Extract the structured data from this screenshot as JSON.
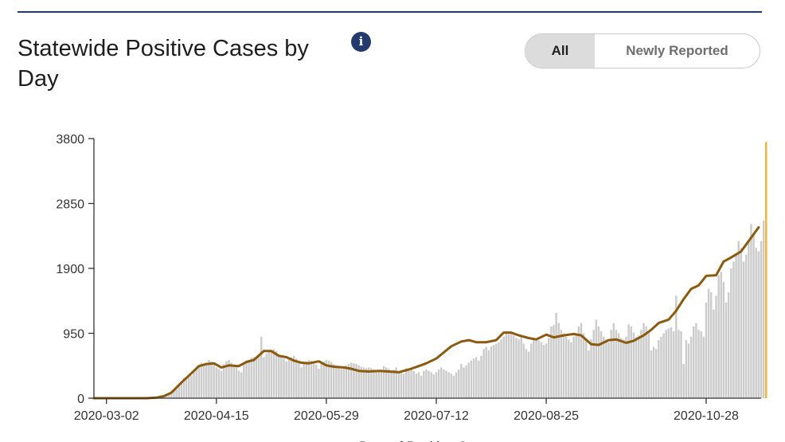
{
  "header": {
    "title": "Statewide Positive Cases by Day",
    "info_icon": "info-icon",
    "toggle": {
      "options": [
        "All",
        "Newly Reported"
      ],
      "selected": "All"
    }
  },
  "colors": {
    "bar": "#cccccc",
    "line": "#8b5a0f",
    "highlight": "#f2b33d",
    "header_rule": "#233a6e"
  },
  "chart_data": {
    "type": "bar",
    "overlay": "line (7-day average)",
    "title": "Statewide Positive Cases by Day",
    "xlabel": "Date of Positive Cases",
    "ylabel": "",
    "ylim": [
      0,
      3800
    ],
    "y_ticks": [
      0,
      950,
      1900,
      2850,
      3800
    ],
    "y_tick_labels": [
      "0",
      "950",
      "1900",
      "2850",
      "3800"
    ],
    "x_tick_labels": [
      "2020-03-02",
      "2020-04-15",
      "2020-05-29",
      "2020-07-12",
      "2020-08-25",
      "2020-10-28"
    ],
    "x_start": "2020-02-26",
    "x_end": "2020-11-19",
    "legend": "none",
    "grid": false,
    "highlight_last_bar": true,
    "series": [
      {
        "type": "bar",
        "step_days": 1,
        "values": [
          0,
          0,
          0,
          0,
          0,
          0,
          0,
          0,
          0,
          0,
          0,
          0,
          0,
          0,
          0,
          0,
          0,
          0,
          0,
          0,
          0,
          5,
          8,
          10,
          15,
          20,
          28,
          35,
          40,
          60,
          80,
          110,
          120,
          130,
          180,
          220,
          300,
          280,
          310,
          330,
          400,
          450,
          480,
          520,
          500,
          520,
          560,
          540,
          520,
          450,
          430,
          400,
          500,
          540,
          560,
          520,
          480,
          460,
          400,
          380,
          500,
          520,
          560,
          590,
          600,
          610,
          620,
          900,
          600,
          650,
          680,
          700,
          720,
          690,
          640,
          600,
          580,
          540,
          560,
          600,
          620,
          580,
          540,
          450,
          500,
          540,
          560,
          550,
          520,
          490,
          430,
          520,
          540,
          560,
          550,
          530,
          500,
          480,
          450,
          430,
          460,
          480,
          500,
          520,
          510,
          500,
          480,
          460,
          450,
          440,
          450,
          440,
          420,
          400,
          380,
          420,
          470,
          450,
          430,
          400,
          420,
          450,
          400,
          380,
          360,
          440,
          400,
          420,
          400,
          360,
          380,
          330,
          400,
          420,
          400,
          380,
          350,
          380,
          420,
          450,
          420,
          400,
          380,
          360,
          330,
          380,
          420,
          500,
          450,
          480,
          520,
          550,
          580,
          600,
          550,
          620,
          720,
          750,
          700,
          760,
          780,
          800,
          820,
          860,
          900,
          980,
          940,
          960,
          920,
          880,
          860,
          900,
          800,
          720,
          680,
          800,
          860,
          880,
          850,
          820,
          780,
          800,
          880,
          1050,
          1070,
          1250,
          1100,
          1000,
          950,
          900,
          860,
          820,
          900,
          950,
          1050,
          1100,
          950,
          870,
          700,
          860,
          1000,
          1150,
          1050,
          980,
          900,
          860,
          820,
          1000,
          1100,
          1000,
          950,
          880,
          860,
          900,
          1080,
          1050,
          960,
          900,
          920,
          1000,
          1100,
          1050,
          980,
          700,
          750,
          720,
          850,
          900,
          950,
          1000,
          1020,
          1040,
          980,
          1500,
          1000,
          980,
          500,
          850,
          800,
          900,
          1050,
          1100,
          1000,
          980,
          900,
          1400,
          1600,
          1550,
          1300,
          1500,
          1800,
          1850,
          1700,
          1400,
          1550,
          1900,
          2000,
          2100,
          2300,
          2200,
          2000,
          2100,
          2300,
          2550,
          2400,
          2200,
          2150,
          2300,
          2600,
          3750
        ]
      },
      {
        "type": "line",
        "name": "",
        "points": [
          [
            "2020-02-26",
            0
          ],
          [
            "2020-03-18",
            0
          ],
          [
            "2020-03-22",
            8
          ],
          [
            "2020-03-25",
            30
          ],
          [
            "2020-03-28",
            80
          ],
          [
            "2020-04-01",
            230
          ],
          [
            "2020-04-04",
            330
          ],
          [
            "2020-04-08",
            470
          ],
          [
            "2020-04-11",
            500
          ],
          [
            "2020-04-14",
            510
          ],
          [
            "2020-04-17",
            450
          ],
          [
            "2020-04-20",
            480
          ],
          [
            "2020-04-24",
            470
          ],
          [
            "2020-04-27",
            530
          ],
          [
            "2020-04-30",
            560
          ],
          [
            "2020-05-04",
            690
          ],
          [
            "2020-05-07",
            690
          ],
          [
            "2020-05-10",
            620
          ],
          [
            "2020-05-13",
            600
          ],
          [
            "2020-05-16",
            550
          ],
          [
            "2020-05-19",
            520
          ],
          [
            "2020-05-22",
            510
          ],
          [
            "2020-05-26",
            540
          ],
          [
            "2020-05-29",
            480
          ],
          [
            "2020-06-01",
            460
          ],
          [
            "2020-06-05",
            450
          ],
          [
            "2020-06-08",
            430
          ],
          [
            "2020-06-11",
            400
          ],
          [
            "2020-06-15",
            390
          ],
          [
            "2020-06-19",
            400
          ],
          [
            "2020-06-23",
            390
          ],
          [
            "2020-06-27",
            380
          ],
          [
            "2020-07-01",
            420
          ],
          [
            "2020-07-05",
            470
          ],
          [
            "2020-07-08",
            510
          ],
          [
            "2020-07-12",
            580
          ],
          [
            "2020-07-15",
            670
          ],
          [
            "2020-07-18",
            760
          ],
          [
            "2020-07-22",
            830
          ],
          [
            "2020-07-25",
            850
          ],
          [
            "2020-07-28",
            820
          ],
          [
            "2020-08-01",
            820
          ],
          [
            "2020-08-05",
            850
          ],
          [
            "2020-08-08",
            960
          ],
          [
            "2020-08-11",
            960
          ],
          [
            "2020-08-14",
            920
          ],
          [
            "2020-08-18",
            880
          ],
          [
            "2020-08-21",
            860
          ],
          [
            "2020-08-25",
            930
          ],
          [
            "2020-08-28",
            890
          ],
          [
            "2020-09-01",
            920
          ],
          [
            "2020-09-05",
            940
          ],
          [
            "2020-09-08",
            920
          ],
          [
            "2020-09-12",
            790
          ],
          [
            "2020-09-15",
            780
          ],
          [
            "2020-09-19",
            850
          ],
          [
            "2020-09-22",
            860
          ],
          [
            "2020-09-26",
            810
          ],
          [
            "2020-09-29",
            840
          ],
          [
            "2020-10-03",
            920
          ],
          [
            "2020-10-06",
            1000
          ],
          [
            "2020-10-09",
            1100
          ],
          [
            "2020-10-13",
            1150
          ],
          [
            "2020-10-16",
            1280
          ],
          [
            "2020-10-19",
            1450
          ],
          [
            "2020-10-22",
            1600
          ],
          [
            "2020-10-25",
            1650
          ],
          [
            "2020-10-28",
            1790
          ],
          [
            "2020-11-01",
            1800
          ],
          [
            "2020-11-04",
            2000
          ],
          [
            "2020-11-07",
            2060
          ],
          [
            "2020-11-11",
            2150
          ],
          [
            "2020-11-14",
            2300
          ],
          [
            "2020-11-18",
            2500
          ]
        ]
      }
    ]
  }
}
